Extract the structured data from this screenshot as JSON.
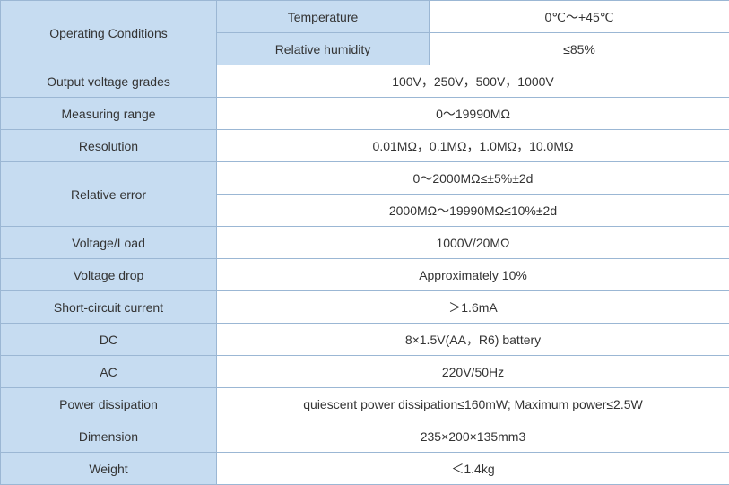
{
  "table": {
    "rows": [
      {
        "label": "Operating Conditions",
        "items": [
          {
            "name": "Temperature",
            "value": "0℃～+45℃"
          },
          {
            "name": "Relative humidity",
            "value": "≤85%"
          }
        ]
      },
      {
        "label": "Output voltage grades",
        "values": [
          "100V，250V，500V，1000V"
        ]
      },
      {
        "label": "Measuring range",
        "values": [
          "0～19990MΩ"
        ]
      },
      {
        "label": "Resolution",
        "values": [
          "0.01MΩ，0.1MΩ，1.0MΩ，10.0MΩ"
        ]
      },
      {
        "label": "Relative error",
        "values": [
          "0～2000MΩ≤±5%±2d",
          "2000MΩ～19990MΩ≤10%±2d"
        ]
      },
      {
        "label": "Voltage/Load",
        "values": [
          "1000V/20MΩ"
        ]
      },
      {
        "label": "Voltage drop",
        "values": [
          "Approximately 10%"
        ]
      },
      {
        "label": "Short-circuit current",
        "values": [
          "＞1.6mA"
        ]
      },
      {
        "label": "DC",
        "values": [
          "8×1.5V(AA，R6) battery"
        ]
      },
      {
        "label": "AC",
        "values": [
          "220V/50Hz"
        ]
      },
      {
        "label": "Power dissipation",
        "values": [
          "quiescent power dissipation≤160mW; Maximum power≤2.5W"
        ]
      },
      {
        "label": "Dimension",
        "values": [
          "235×200×135mm3"
        ]
      },
      {
        "label": "Weight",
        "values": [
          "＜1.4kg"
        ]
      }
    ]
  }
}
